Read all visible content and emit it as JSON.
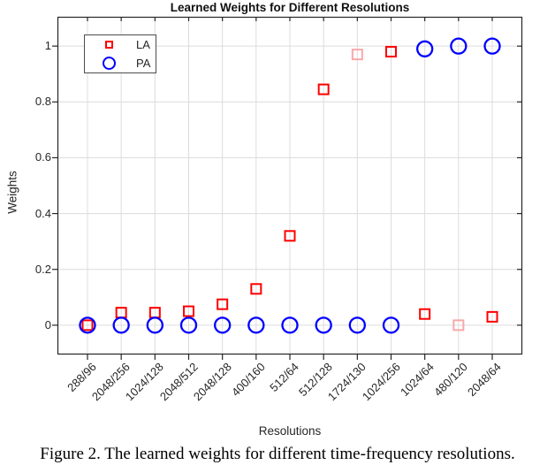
{
  "page": {
    "caption": "Figure 2. The learned weights for different time-frequency resolutions."
  },
  "chart_data": {
    "type": "scatter",
    "title": "Learned Weights for Different Resolutions",
    "xlabel": "Resolutions",
    "ylabel": "Weights",
    "categories": [
      "288/96",
      "2048/256",
      "1024/128",
      "2048/512",
      "2048/128",
      "400/160",
      "512/64",
      "512/128",
      "1724/130",
      "1024/256",
      "1024/64",
      "480/120",
      "2048/64"
    ],
    "yticks": [
      0,
      0.2,
      0.4,
      0.6,
      0.8,
      1
    ],
    "ytick_labels": [
      "0",
      "0.2",
      "0.4",
      "0.6",
      "0.8",
      "1"
    ],
    "ylim": [
      -0.105,
      1.105
    ],
    "grid": true,
    "legend_position": "top-left",
    "colors": {
      "la": "#ff0000",
      "la_faded": "#f9a8a8",
      "pa": "#0000ff",
      "grid": "#dcdcdc",
      "axis": "#262626"
    },
    "series": [
      {
        "name": "LA",
        "marker": "square",
        "color": "#ff0000",
        "faded_color": "#f9a8a8",
        "faded_points": [
          8,
          11
        ],
        "values": [
          0.0,
          0.045,
          0.045,
          0.05,
          0.075,
          0.13,
          0.32,
          0.845,
          0.97,
          0.98,
          0.04,
          0.0,
          0.03
        ]
      },
      {
        "name": "PA",
        "marker": "circle",
        "color": "#0000ff",
        "faded_points": [],
        "values": [
          0,
          0,
          0,
          0,
          0,
          0,
          0,
          0,
          0,
          0,
          0.99,
          1.0,
          1.0
        ]
      }
    ]
  }
}
